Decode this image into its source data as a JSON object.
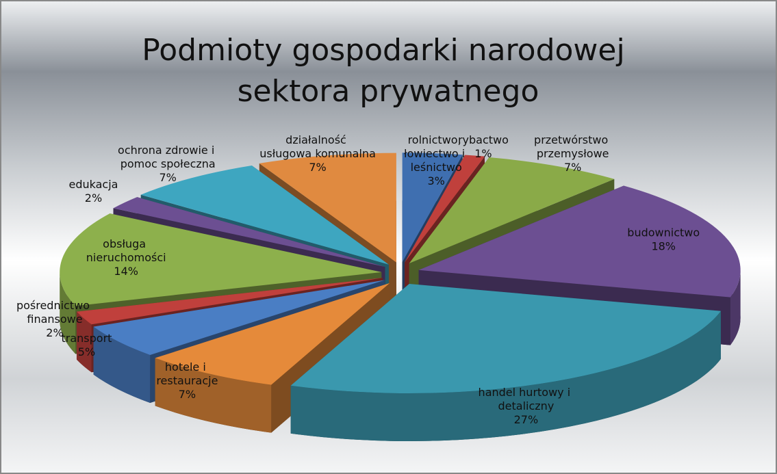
{
  "chart_data": {
    "type": "pie",
    "title": "Podmioty gospodarki narodowej sektora prywatnego",
    "categories": [
      "rolnictwo, łowiectwo i leśnictwo",
      "rybactwo",
      "przetwórstwo przemysłowe",
      "budownictwo",
      "handel hurtowy i detaliczny",
      "hotele i restauracje",
      "transport",
      "pośrednictwo finansowe",
      "obsługa nieruchomości",
      "edukacja",
      "ochrona zdrowie i pomoc społeczna",
      "działalność usługowa komunalna"
    ],
    "values": [
      3,
      1,
      7,
      18,
      27,
      7,
      5,
      2,
      14,
      2,
      7,
      7
    ],
    "value_labels": [
      "3%",
      "1%",
      "7%",
      "18%",
      "27%",
      "7%",
      "5%",
      "2%",
      "14%",
      "2%",
      "7%",
      "7%"
    ],
    "colors": [
      "#3f6fb0",
      "#c0403c",
      "#8aaa48",
      "#6c4f92",
      "#3a98ae",
      "#e58a3a",
      "#4a7ec4",
      "#c0403c",
      "#8db04c",
      "#6c4f92",
      "#3ea6c0",
      "#e08a40"
    ]
  }
}
